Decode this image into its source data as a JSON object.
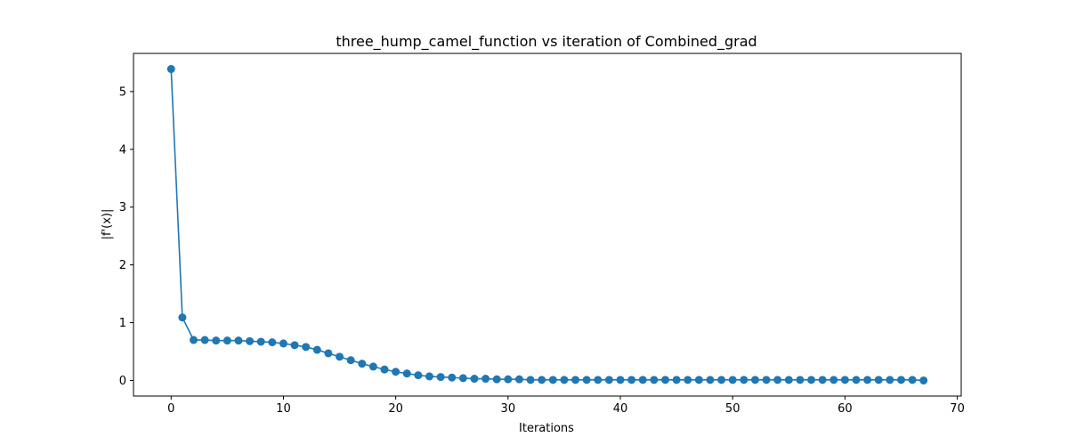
{
  "chart_data": {
    "type": "line",
    "title": "three_hump_camel_function vs iteration of Combined_grad",
    "xlabel": "Iterations",
    "ylabel": "|f'(x)|",
    "xlim": [
      -3.35,
      70.35
    ],
    "ylim": [
      -0.27,
      5.66
    ],
    "xticks": [
      0,
      10,
      20,
      30,
      40,
      50,
      60,
      70
    ],
    "yticks": [
      0,
      1,
      2,
      3,
      4,
      5
    ],
    "grid": false,
    "series": [
      {
        "color": "#1f77b4",
        "marker": "circle",
        "x": [
          0,
          1,
          2,
          3,
          4,
          5,
          6,
          7,
          8,
          9,
          10,
          11,
          12,
          13,
          14,
          15,
          16,
          17,
          18,
          19,
          20,
          21,
          22,
          23,
          24,
          25,
          26,
          27,
          28,
          29,
          30,
          31,
          32,
          33,
          34,
          35,
          36,
          37,
          38,
          39,
          40,
          41,
          42,
          43,
          44,
          45,
          46,
          47,
          48,
          49,
          50,
          51,
          52,
          53,
          54,
          55,
          56,
          57,
          58,
          59,
          60,
          61,
          62,
          63,
          64,
          65,
          66,
          67
        ],
        "y": [
          5.39,
          1.09,
          0.7,
          0.7,
          0.69,
          0.69,
          0.69,
          0.68,
          0.67,
          0.66,
          0.64,
          0.61,
          0.58,
          0.53,
          0.47,
          0.41,
          0.35,
          0.29,
          0.24,
          0.19,
          0.15,
          0.12,
          0.09,
          0.07,
          0.06,
          0.05,
          0.04,
          0.03,
          0.03,
          0.02,
          0.02,
          0.02,
          0.01,
          0.01,
          0.01,
          0.01,
          0.01,
          0.01,
          0.01,
          0.01,
          0.01,
          0.01,
          0.01,
          0.01,
          0.01,
          0.01,
          0.01,
          0.01,
          0.01,
          0.01,
          0.01,
          0.01,
          0.01,
          0.01,
          0.01,
          0.01,
          0.01,
          0.01,
          0.01,
          0.01,
          0.01,
          0.01,
          0.01,
          0.01,
          0.01,
          0.01,
          0.01,
          0.0
        ]
      }
    ]
  }
}
